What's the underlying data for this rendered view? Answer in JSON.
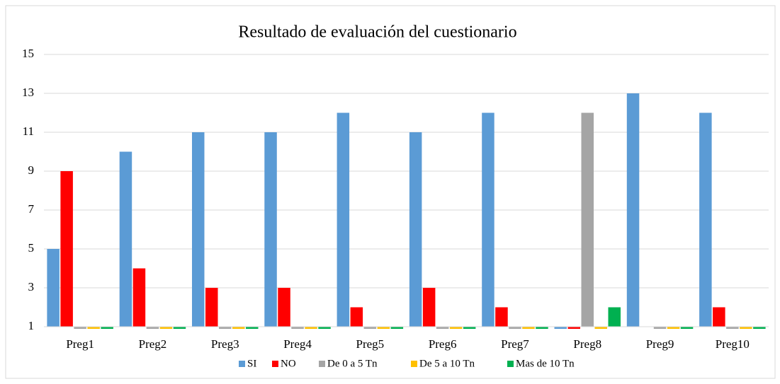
{
  "chart_data": {
    "type": "bar",
    "title": "Resultado de evaluación del cuestionario",
    "categories": [
      "Preg1",
      "Preg2",
      "Preg3",
      "Preg4",
      "Preg5",
      "Preg6",
      "Preg7",
      "Preg8",
      "Preg9",
      "Preg10"
    ],
    "series": [
      {
        "name": "SI",
        "color": "#5b9bd5",
        "values": [
          5,
          10,
          11,
          11,
          12,
          11,
          12,
          0,
          13,
          12
        ]
      },
      {
        "name": "NO",
        "color": "#ff0000",
        "values": [
          9,
          4,
          3,
          3,
          2,
          3,
          2,
          0,
          1,
          2
        ]
      },
      {
        "name": "De 0 a 5 Tn",
        "color": "#a5a5a5",
        "values": [
          0,
          0,
          0,
          0,
          0,
          0,
          0,
          12,
          0,
          0
        ]
      },
      {
        "name": "De 5 a 10 Tn",
        "color": "#ffc000",
        "values": [
          0,
          0,
          0,
          0,
          0,
          0,
          0,
          0,
          0,
          0
        ]
      },
      {
        "name": "Mas de 10 Tn",
        "color": "#00b050",
        "values": [
          0,
          0,
          0,
          0,
          0,
          0,
          0,
          2,
          0,
          0
        ]
      }
    ],
    "ylim": [
      1,
      15
    ],
    "yticks": [
      1,
      3,
      5,
      7,
      9,
      11,
      13,
      15
    ],
    "grid": true,
    "legend": "bottom"
  }
}
